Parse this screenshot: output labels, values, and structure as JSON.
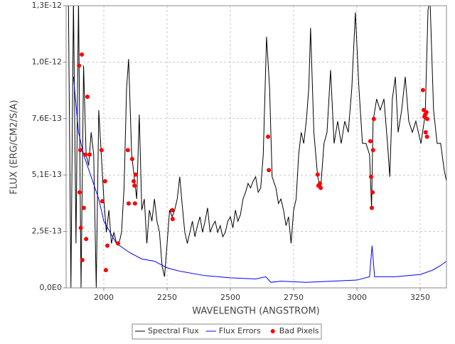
{
  "chart_data": {
    "type": "line",
    "xlabel": "WAVELENGTH (ANGSTROM)",
    "ylabel": "FLUX (ERG/CM2/S/A)",
    "xlim": [
      1851,
      3354
    ],
    "ylim": [
      0,
      1.27e-12
    ],
    "xticks": [
      2000,
      2250,
      2500,
      2750,
      3000,
      3250
    ],
    "yticks": [
      {
        "value": 0,
        "label": "0,0E0"
      },
      {
        "value": 2.54e-13,
        "label": "2,5E-13"
      },
      {
        "value": 5.08e-13,
        "label": "5,1E-13"
      },
      {
        "value": 7.62e-13,
        "label": "7,6E-13"
      },
      {
        "value": 1.016e-12,
        "label": "1,0E-12"
      },
      {
        "value": 1.27e-12,
        "label": "1,3E-12"
      }
    ],
    "grid": true,
    "legend": "bottom",
    "series": [
      {
        "name": "Spectral Flux",
        "color": "#000000",
        "type": "line",
        "x": [
          1860,
          1870,
          1880,
          1890,
          1900,
          1910,
          1920,
          1930,
          1940,
          1950,
          1960,
          1970,
          1980,
          1990,
          2000,
          2010,
          2020,
          2030,
          2040,
          2050,
          2060,
          2070,
          2080,
          2090,
          2098,
          2110,
          2120,
          2130,
          2140,
          2150,
          2160,
          2170,
          2180,
          2190,
          2200,
          2210,
          2220,
          2230,
          2240,
          2250,
          2260,
          2270,
          2280,
          2290,
          2300,
          2310,
          2320,
          2330,
          2340,
          2350,
          2360,
          2370,
          2380,
          2390,
          2400,
          2410,
          2420,
          2430,
          2440,
          2450,
          2460,
          2470,
          2480,
          2490,
          2500,
          2510,
          2520,
          2530,
          2540,
          2550,
          2560,
          2570,
          2580,
          2590,
          2600,
          2610,
          2620,
          2630,
          2643,
          2655,
          2665,
          2680,
          2690,
          2700,
          2710,
          2720,
          2730,
          2740,
          2750,
          2760,
          2770,
          2780,
          2790,
          2800,
          2810,
          2817,
          2830,
          2845,
          2857,
          2870,
          2882,
          2896,
          2910,
          2924,
          2938,
          2952,
          2966,
          2980,
          2994,
          3008,
          3022,
          3036,
          3050,
          3058,
          3064,
          3078,
          3092,
          3107,
          3121,
          3130,
          3140,
          3152,
          3163,
          3177,
          3191,
          3205,
          3219,
          3233,
          3253,
          3270,
          3281,
          3289,
          3303,
          3317,
          3331,
          3345,
          3354
        ],
        "values": [
          1.3e-12,
          0,
          1.3e-12,
          2e-13,
          1.3e-12,
          0,
          1e-12,
          6e-13,
          5.5e-13,
          7e-13,
          6e-13,
          0,
          8e-13,
          6e-13,
          4e-13,
          2.5e-13,
          3.5e-13,
          2e-13,
          2.5e-13,
          2e-13,
          2e-13,
          2.5e-13,
          4.5e-13,
          9e-13,
          1.03e-12,
          6e-13,
          5e-13,
          4e-13,
          7.8e-13,
          3.5e-13,
          4e-13,
          2e-13,
          3.5e-13,
          3e-13,
          4e-13,
          3e-13,
          2.5e-13,
          1e-13,
          5e-14,
          2e-13,
          3.5e-13,
          3.2e-13,
          3.5e-13,
          4e-13,
          5e-13,
          3.7e-13,
          2.5e-13,
          2e-13,
          2.5e-13,
          3e-13,
          2.3e-13,
          2.8e-13,
          3.2e-13,
          2.5e-13,
          3e-13,
          3.6e-13,
          2.5e-13,
          2.8e-13,
          3e-13,
          2.5e-13,
          2.8e-13,
          2.3e-13,
          2.5e-13,
          3e-13,
          3.2e-13,
          2.7e-13,
          3.5e-13,
          3e-13,
          3.3e-13,
          4e-13,
          4.3e-13,
          4.7e-13,
          4.5e-13,
          4.8e-13,
          5e-13,
          4.3e-13,
          4.5e-13,
          6e-13,
          1.13e-12,
          9e-13,
          5e-13,
          4.5e-13,
          3.8e-13,
          4e-13,
          3.5e-13,
          2.8e-13,
          3.2e-13,
          2e-13,
          3.5e-13,
          4e-13,
          6e-13,
          7e-13,
          6.5e-13,
          7.5e-13,
          9e-13,
          1.17e-12,
          7e-13,
          5e-13,
          4.5e-13,
          6.5e-13,
          7e-13,
          9.8e-13,
          6.5e-13,
          7.5e-13,
          6.5e-13,
          7.5e-13,
          7e-13,
          9e-13,
          1.24e-12,
          9e-13,
          6.5e-13,
          6.5e-13,
          6e-13,
          3.6e-13,
          7.5e-13,
          8.5e-13,
          8e-13,
          8.5e-13,
          6.5e-13,
          5e-13,
          8.5e-13,
          9.5e-13,
          7e-13,
          8e-13,
          9.5e-13,
          7.5e-13,
          7e-13,
          7.5e-13,
          6.5e-13,
          7.8e-13,
          1.25e-12,
          1.3e-12,
          8e-13,
          6.5e-13,
          6.5e-13,
          5.3e-13,
          4.8e-13
        ]
      },
      {
        "name": "Flux Errors",
        "color": "#0000ff",
        "type": "line",
        "x": [
          1880,
          1900,
          1920,
          1950,
          1980,
          2000,
          2050,
          2100,
          2150,
          2200,
          2250,
          2300,
          2400,
          2500,
          2600,
          2640,
          2660,
          2700,
          2800,
          2900,
          3000,
          3050,
          3060,
          3070,
          3150,
          3250,
          3300,
          3330,
          3354
        ],
        "values": [
          9.5e-13,
          7e-13,
          6e-13,
          5e-13,
          4e-13,
          3e-13,
          2e-13,
          1.6e-13,
          1.3e-13,
          1.2e-13,
          9e-14,
          7.5e-14,
          5.5e-14,
          4.5e-14,
          4e-14,
          5e-14,
          2.5e-14,
          3e-14,
          2.5e-14,
          3e-14,
          3.5e-14,
          5e-14,
          1.9e-13,
          5e-14,
          5e-14,
          6e-14,
          8e-14,
          1e-13,
          1.2e-13
        ]
      },
      {
        "name": "Bad Pixels",
        "color": "#ff0000",
        "type": "scatter",
        "x": [
          1902,
          1913,
          1904,
          1907,
          1909,
          1915,
          1921,
          1927,
          1930,
          1935,
          1944,
          1991,
          1994,
          2005,
          2008,
          2014,
          2056,
          2095,
          2098,
          2112,
          2118,
          2121,
          2123,
          2126,
          2270,
          2272,
          2649,
          2652,
          2845,
          2848,
          2854,
          2857,
          3053,
          3056,
          3059,
          3062,
          3064,
          3067,
          3261,
          3264,
          3270,
          3275,
          3267,
          3272,
          3277,
          3278
        ],
        "values": [
          1e-12,
          1.05e-12,
          4.3e-13,
          6.2e-13,
          2.7e-13,
          1.25e-13,
          3.6e-13,
          6e-13,
          2.2e-13,
          8.6e-13,
          6e-13,
          6.2e-13,
          3.9e-13,
          4.8e-13,
          8e-14,
          1.9e-13,
          2e-13,
          6.2e-13,
          3.8e-13,
          5.8e-13,
          4.8e-13,
          4.6e-13,
          3.8e-13,
          5.1e-13,
          3.5e-13,
          3.1e-13,
          6.8e-13,
          5.3e-13,
          5.1e-13,
          4.6e-13,
          4.7e-13,
          4.5e-13,
          6.6e-13,
          5e-13,
          3.6e-13,
          4.3e-13,
          6.2e-13,
          7.6e-13,
          8.9e-13,
          8e-13,
          7.8e-13,
          7.9e-13,
          7.7e-13,
          7e-13,
          6.8e-13,
          7.6e-13
        ]
      }
    ]
  }
}
